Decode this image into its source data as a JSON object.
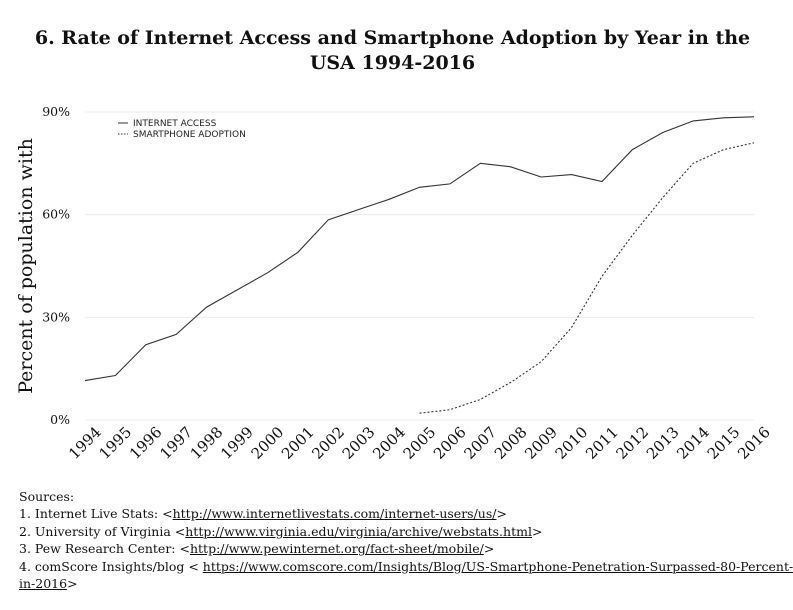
{
  "title_lines": [
    "6. Rate of Internet Access and Smartphone Adoption by Year in the",
    "USA 1994-2016"
  ],
  "chart_data": {
    "type": "line",
    "title": "6. Rate of Internet Access and Smartphone Adoption by Year in the USA 1994-2016",
    "xlabel": "",
    "ylabel": "Percent of population with",
    "x": [
      1994,
      1995,
      1996,
      1997,
      1998,
      1999,
      2000,
      2001,
      2002,
      2003,
      2004,
      2005,
      2006,
      2007,
      2008,
      2009,
      2010,
      2011,
      2012,
      2013,
      2014,
      2015,
      2016
    ],
    "x_tick_labels": [
      "1994",
      "1995",
      "1996",
      "1997",
      "1998",
      "1999",
      "2000",
      "2001",
      "2002",
      "2003",
      "2004",
      "2005",
      "2006",
      "2007",
      "2008",
      "2009",
      "2010",
      "2011",
      "2012",
      "2013",
      "2014",
      "2015",
      "2016"
    ],
    "ylim": [
      0,
      90
    ],
    "y_ticks": [
      0,
      30,
      60,
      90
    ],
    "y_tick_labels": [
      "0%",
      "30%",
      "60%",
      "90%"
    ],
    "grid": true,
    "legend_position": "top-left",
    "series": [
      {
        "name": "INTERNET ACCESS",
        "style": "solid",
        "color": "#333333",
        "values": [
          11.5,
          13,
          22,
          25,
          33,
          38,
          43,
          49,
          58.5,
          61.5,
          64.5,
          68,
          69,
          75,
          74,
          71,
          71.7,
          69.7,
          79,
          84,
          87.4,
          88.3,
          88.6
        ]
      },
      {
        "name": "SMARTPHONE ADOPTION",
        "style": "dotted",
        "color": "#333333",
        "values": [
          null,
          null,
          null,
          null,
          null,
          null,
          null,
          null,
          null,
          null,
          null,
          2,
          3,
          6,
          11,
          17,
          27,
          42,
          54,
          65,
          75,
          79,
          81
        ]
      }
    ]
  },
  "sources": {
    "heading": "Sources:",
    "items": [
      {
        "prefix": "1. Internet Live Stats: <",
        "link": "http://www.internetlivestats.com/internet-users/us/",
        "suffix": ">"
      },
      {
        "prefix": "2. University of Virginia <",
        "link": "http://www.virginia.edu/virginia/archive/webstats.html",
        "suffix": ">"
      },
      {
        "prefix": "3. Pew Research Center: <",
        "link": "http://www.pewinternet.org/fact-sheet/mobile/",
        "suffix": ">"
      },
      {
        "prefix": "4. comScore Insights/blog < ",
        "link": "https://www.comscore.com/Insights/Blog/US-Smartphone-Penetration-Surpassed-80-Percent-",
        "suffix": ""
      },
      {
        "prefix": "",
        "link": "in-2016",
        "suffix": ">"
      }
    ]
  }
}
